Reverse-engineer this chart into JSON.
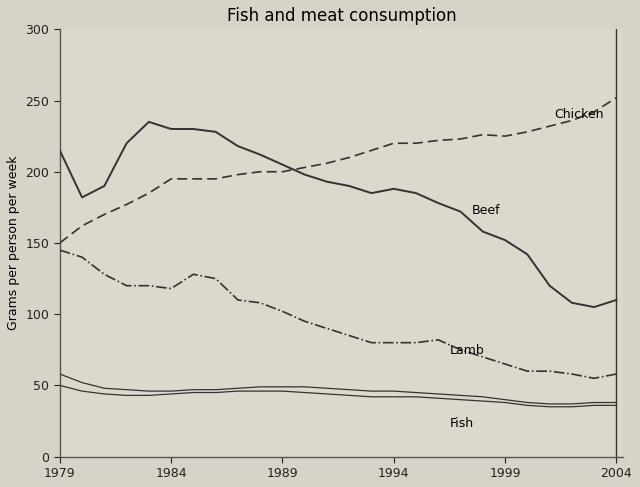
{
  "title": "Fish and meat consumption",
  "ylabel": "Grams per person per week",
  "ylim": [
    0,
    300
  ],
  "yticks": [
    0,
    50,
    100,
    150,
    200,
    250,
    300
  ],
  "xlim": [
    1979,
    2004
  ],
  "xticks": [
    1979,
    1984,
    1989,
    1994,
    1999,
    2004
  ],
  "years": [
    1979,
    1980,
    1981,
    1982,
    1983,
    1984,
    1985,
    1986,
    1987,
    1988,
    1989,
    1990,
    1991,
    1992,
    1993,
    1994,
    1995,
    1996,
    1997,
    1998,
    1999,
    2000,
    2001,
    2002,
    2003,
    2004
  ],
  "chicken": [
    150,
    162,
    170,
    177,
    185,
    195,
    195,
    195,
    198,
    200,
    200,
    203,
    206,
    210,
    215,
    220,
    220,
    222,
    223,
    226,
    225,
    228,
    232,
    236,
    242,
    252
  ],
  "beef": [
    215,
    182,
    190,
    220,
    235,
    230,
    230,
    228,
    218,
    212,
    205,
    198,
    193,
    190,
    185,
    188,
    185,
    178,
    172,
    158,
    152,
    142,
    120,
    108,
    105,
    110
  ],
  "lamb": [
    145,
    140,
    128,
    120,
    120,
    118,
    128,
    125,
    110,
    108,
    102,
    95,
    90,
    85,
    80,
    80,
    80,
    82,
    75,
    70,
    65,
    60,
    60,
    58,
    55,
    58
  ],
  "fish": [
    58,
    52,
    48,
    47,
    46,
    46,
    47,
    47,
    48,
    49,
    49,
    49,
    48,
    47,
    46,
    46,
    45,
    44,
    43,
    42,
    40,
    38,
    37,
    37,
    38,
    38
  ],
  "fish2": [
    50,
    46,
    44,
    43,
    43,
    44,
    45,
    45,
    46,
    46,
    46,
    45,
    44,
    43,
    42,
    42,
    42,
    41,
    40,
    39,
    38,
    36,
    35,
    35,
    36,
    36
  ],
  "line_color": "#333333",
  "bg_color": "#d8d3c8",
  "plot_bg": "#ddd8cc",
  "label_chicken": "Chicken",
  "label_beef": "Beef",
  "label_lamb": "Lamb",
  "label_fish": "Fish",
  "label_fontsize": 9,
  "title_fontsize": 12,
  "axis_fontsize": 9
}
